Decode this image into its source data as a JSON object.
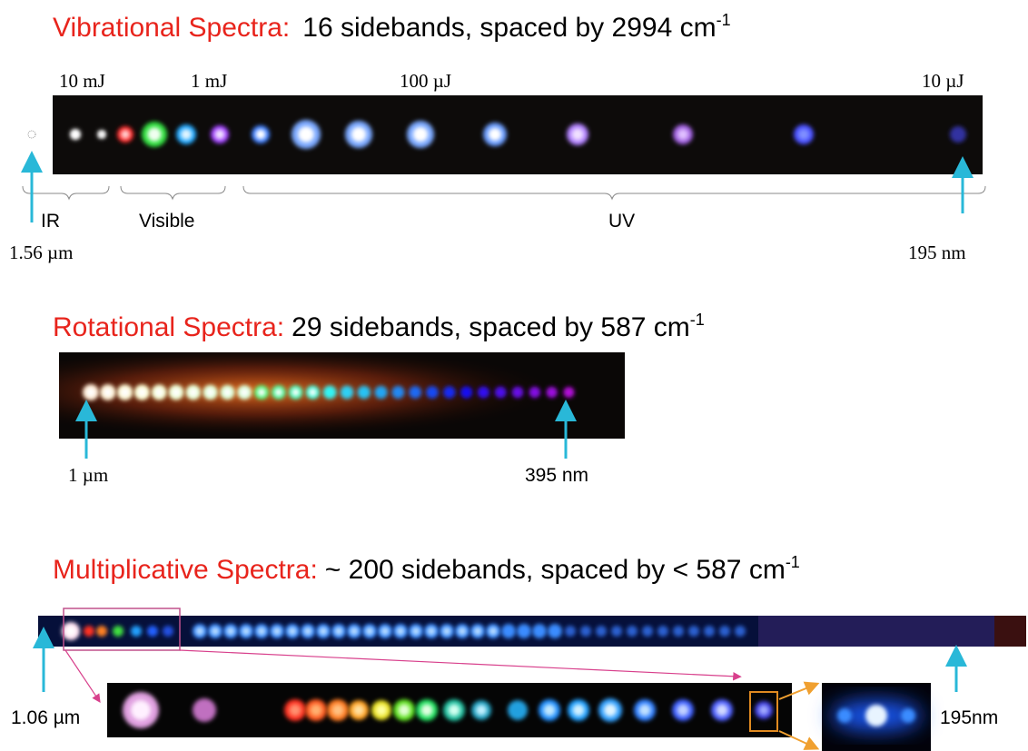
{
  "sections": [
    {
      "title_highlight": "Vibrational Spectra:",
      "title_rest": "16 sidebands, spaced by 2994 cm",
      "title_sup": "-1",
      "energy_labels": [
        "10 mJ",
        "1 mJ",
        "100 µJ",
        "10 µJ"
      ],
      "regions": [
        "IR",
        "Visible",
        "UV"
      ],
      "start_label": "1.56 µm",
      "end_label": "195 nm"
    },
    {
      "title_highlight": "Rotational Spectra:",
      "title_rest": "29 sidebands, spaced by 587 cm",
      "title_sup": "-1",
      "start_label": "1 µm",
      "end_label": "395 nm"
    },
    {
      "title_highlight": "Multiplicative Spectra:",
      "title_rest": "~ 200 sidebands, spaced by < 587 cm",
      "title_sup": "-1",
      "start_label": "1.06 µm",
      "end_label": "195nm"
    }
  ]
}
